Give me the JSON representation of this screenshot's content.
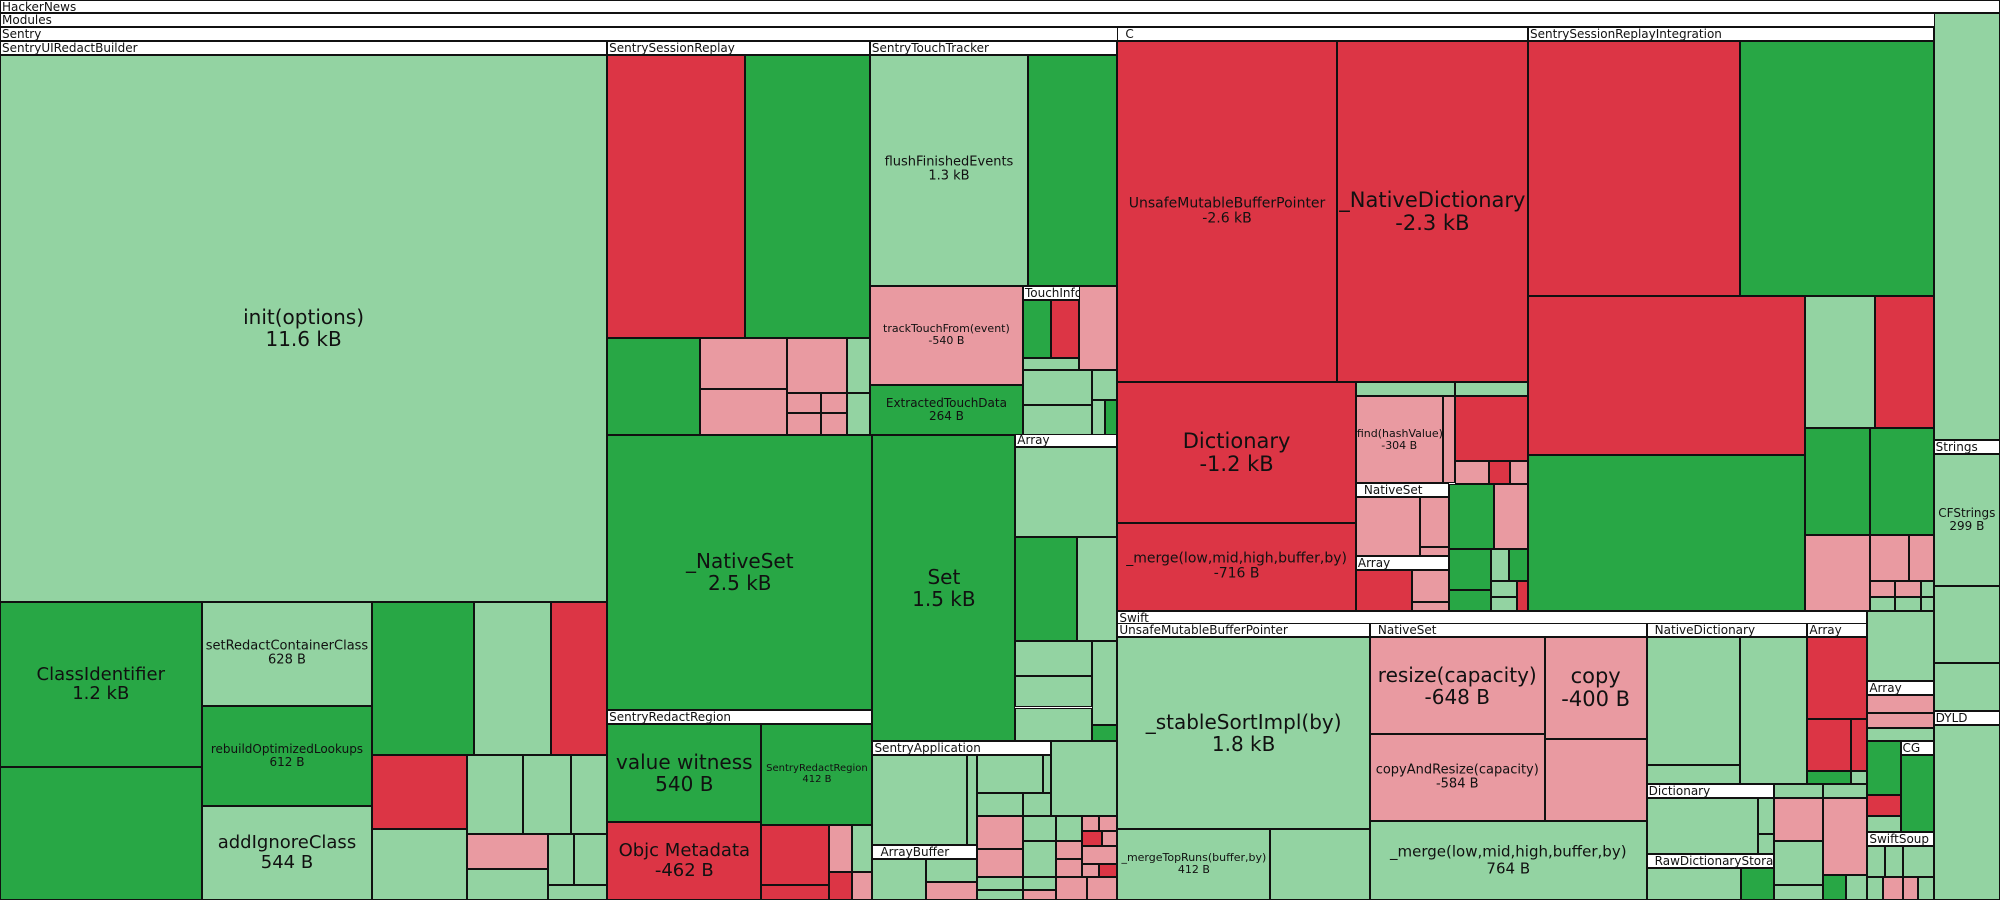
{
  "colors": {
    "grow": "#93d3a2",
    "grow_strong": "#28a745",
    "shrink": "#dc3545",
    "shrink_light": "#e99aa1",
    "header": "#ffffff",
    "border": "#111111"
  },
  "chart_data": {
    "type": "treemap",
    "root": "HackerNews",
    "path": [
      "HackerNews",
      "Modules",
      "Sentry"
    ],
    "groups": [
      {
        "name": "SentryUIRedactBuilder",
        "items": [
          {
            "name": "init(options)",
            "value": "11.6 kB",
            "color": "grow"
          },
          {
            "name": "ClassIdentifier",
            "value": "1.2 kB",
            "color": "grow_strong"
          },
          {
            "name": "setRedactContainerClass",
            "value": "628 B",
            "color": "grow"
          },
          {
            "name": "rebuildOptimizedLookups",
            "value": "612 B",
            "color": "grow_strong"
          },
          {
            "name": "addIgnoreClass",
            "value": "544 B",
            "color": "grow"
          }
        ]
      },
      {
        "name": "SentrySessionReplay",
        "items": [
          {
            "name": "_NativeSet",
            "value": "2.5 kB",
            "color": "grow_strong"
          }
        ]
      },
      {
        "name": "SentryRedactRegion",
        "items": [
          {
            "name": "value witness",
            "value": "540 B",
            "color": "grow_strong"
          },
          {
            "name": "SentryRedactRegion",
            "value": "412 B",
            "color": "grow_strong"
          },
          {
            "name": "Objc Metadata",
            "value": "-462 B",
            "color": "shrink"
          }
        ]
      },
      {
        "name": "SentryTouchTracker",
        "items": [
          {
            "name": "flushFinishedEvents",
            "value": "1.3 kB",
            "color": "grow"
          },
          {
            "name": "trackTouchFrom(event)",
            "value": "-540 B",
            "color": "shrink_light"
          },
          {
            "name": "ExtractedTouchData",
            "value": "264 B",
            "color": "grow_strong"
          }
        ]
      },
      {
        "name": "TouchInfo",
        "items": []
      },
      {
        "name": "Array",
        "items": []
      },
      {
        "name": "Set",
        "items": [
          {
            "name": "Set",
            "value": "1.5 kB",
            "color": "grow_strong"
          }
        ]
      },
      {
        "name": "SentryApplication",
        "items": []
      },
      {
        "name": "_ArrayBuffer",
        "items": []
      },
      {
        "name": "_C",
        "items": [
          {
            "name": "UnsafeMutableBufferPointer",
            "value": "-2.6 kB",
            "color": "shrink"
          },
          {
            "name": "_NativeDictionary",
            "value": "-2.3 kB",
            "color": "shrink"
          },
          {
            "name": "Dictionary",
            "value": "-1.2 kB",
            "color": "shrink"
          },
          {
            "name": "_merge(low,mid,high,buffer,by)",
            "value": "-716 B",
            "color": "shrink"
          },
          {
            "name": "find(hashValue)",
            "value": "-304 B",
            "color": "shrink_light"
          }
        ]
      },
      {
        "name": "_NativeSet",
        "items": []
      },
      {
        "name": "SentrySessionReplayIntegration",
        "items": []
      },
      {
        "name": "Strings",
        "items": [
          {
            "name": "CFStrings",
            "value": "299 B",
            "color": "grow"
          }
        ]
      },
      {
        "name": "DYLD",
        "items": []
      },
      {
        "name": "Swift",
        "items": []
      },
      {
        "name": "UnsafeMutableBufferPointer",
        "items": [
          {
            "name": "_stableSortImpl(by)",
            "value": "1.8 kB",
            "color": "grow"
          },
          {
            "name": "_mergeTopRuns(buffer,by)",
            "value": "412 B",
            "color": "grow"
          }
        ]
      },
      {
        "name": "_NativeSet",
        "items": [
          {
            "name": "resize(capacity)",
            "value": "-648 B",
            "color": "shrink_light"
          },
          {
            "name": "copy",
            "value": "-400 B",
            "color": "shrink_light"
          },
          {
            "name": "copyAndResize(capacity)",
            "value": "-584 B",
            "color": "shrink_light"
          },
          {
            "name": "_merge(low,mid,high,buffer,by)",
            "value": "764 B",
            "color": "grow"
          }
        ]
      },
      {
        "name": "_NativeDictionary",
        "items": []
      },
      {
        "name": "Dictionary",
        "items": []
      },
      {
        "name": "_RawDictionaryStorage",
        "items": []
      },
      {
        "name": "CG",
        "items": []
      },
      {
        "name": "SwiftSoup",
        "items": []
      }
    ]
  }
}
